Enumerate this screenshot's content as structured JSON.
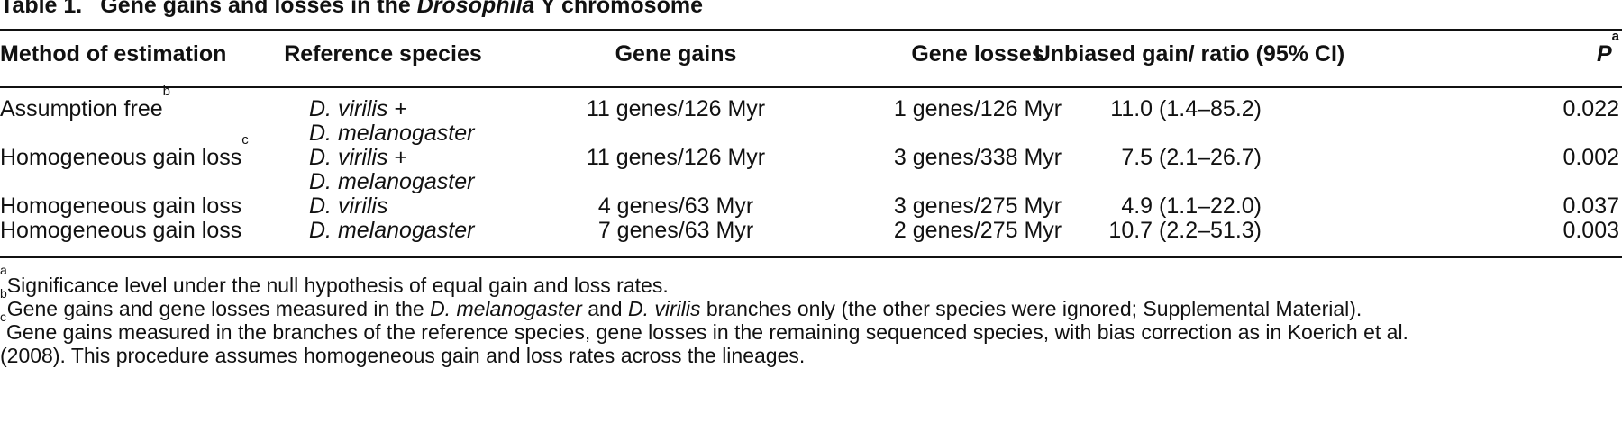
{
  "table": {
    "label": "Table 1.",
    "title_pre": "Gene gains and losses in the ",
    "title_italic": "Drosophila",
    "title_post": " Y chromosome",
    "headers": {
      "method": "Method of estimation",
      "reference": "Reference species",
      "gains": "Gene gains",
      "losses": "Gene losses",
      "ratio": "Unbiased gain/ ratio (95% CI)",
      "p": "P",
      "p_sup": "a"
    },
    "rows": [
      {
        "method": "Assumption free",
        "method_sup": "b",
        "ref_line1": "D. virilis",
        "ref_plus": " +",
        "ref_line2": "D. melanogaster",
        "gains": "11 genes/126 Myr",
        "losses": "1 genes/126 Myr",
        "ratio": "11.0 (1.4–85.2)",
        "p": "0.022"
      },
      {
        "method": "Homogeneous gain loss",
        "method_sup": "c",
        "ref_line1": "D. virilis",
        "ref_plus": " +",
        "ref_line2": "D. melanogaster",
        "gains": "11 genes/126 Myr",
        "losses": "3 genes/338 Myr",
        "ratio": "7.5 (2.1–26.7)",
        "p": "0.002"
      },
      {
        "method": "Homogeneous gain loss",
        "ref_line1": "D. virilis",
        "gains": "4 genes/63 Myr",
        "losses": "3 genes/275 Myr",
        "ratio": "4.9 (1.1–22.0)",
        "p": "0.037"
      },
      {
        "method": "Homogeneous gain loss",
        "ref_line1": "D. melanogaster",
        "gains": "7 genes/63 Myr",
        "losses": "2 genes/275 Myr",
        "ratio": "10.7 (2.2–51.3)",
        "p": "0.003"
      }
    ]
  },
  "footnotes": {
    "a_sup": "a",
    "a_text": "Significance level under the null hypothesis of equal gain and loss rates.",
    "b_sup": "b",
    "b_pre": "Gene gains and gene losses measured in the ",
    "b_it1": "D. melanogaster",
    "b_mid": " and ",
    "b_it2": "D. virilis",
    "b_post": " branches only (the other species were ignored; Supplemental Material).",
    "c_sup": "c",
    "c_line1": "Gene gains measured in the branches of the reference species, gene losses in the remaining sequenced species, with bias correction as in Koerich et al.",
    "c_line2": "(2008). This procedure assumes homogeneous gain and loss rates across the lineages."
  }
}
